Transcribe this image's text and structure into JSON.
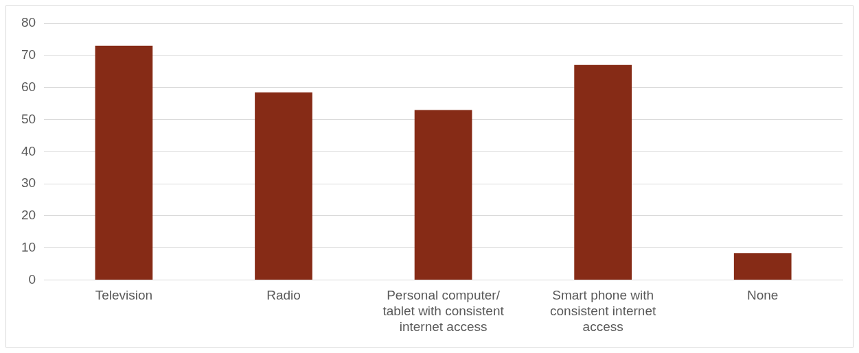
{
  "chart_data": {
    "type": "bar",
    "categories": [
      "Television",
      "Radio",
      "Personal computer/ tablet with consistent internet access",
      "Smart phone with consistent internet access",
      "None"
    ],
    "values": [
      73,
      58.5,
      53,
      67,
      8.4
    ],
    "color": "#862b16",
    "ylim": [
      0,
      80
    ],
    "yticks": [
      0,
      10,
      20,
      30,
      40,
      50,
      60,
      70,
      80
    ],
    "grid": "y"
  }
}
